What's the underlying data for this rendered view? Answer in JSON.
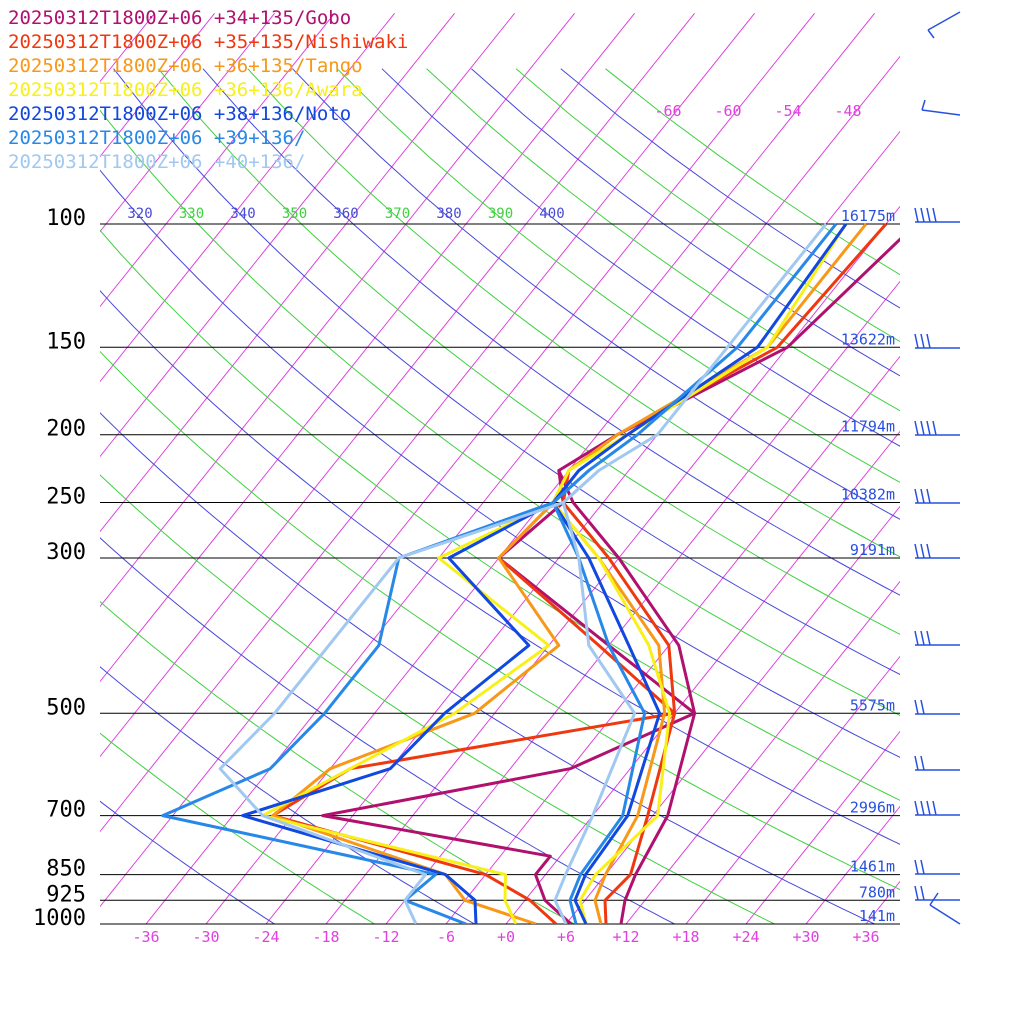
{
  "chart_data": {
    "type": "line",
    "title": "",
    "xlabel": "",
    "ylabel": "",
    "legend_placement": "top-left",
    "grid": true,
    "ylim": [
      1000,
      100
    ],
    "xlim": [
      -40,
      40
    ],
    "pressure_levels": [
      {
        "p": 100,
        "label": "100",
        "height": "16175m"
      },
      {
        "p": 150,
        "label": "150",
        "height": "13622m"
      },
      {
        "p": 200,
        "label": "200",
        "height": "11794m"
      },
      {
        "p": 250,
        "label": "250",
        "height": "10382m"
      },
      {
        "p": 300,
        "label": "300",
        "height": "9191m"
      },
      {
        "p": 500,
        "label": "500",
        "height": "5575m"
      },
      {
        "p": 700,
        "label": "700",
        "height": "2996m"
      },
      {
        "p": 850,
        "label": "850",
        "height": "1461m"
      },
      {
        "p": 925,
        "label": "925",
        "height": "780m"
      },
      {
        "p": 1000,
        "label": "1000",
        "height": "141m"
      }
    ],
    "temp_ticks": [
      "-36",
      "-30",
      "-24",
      "-18",
      "-12",
      "-6",
      "+0",
      "+6",
      "+12",
      "+18",
      "+24",
      "+30",
      "+36"
    ],
    "temp_tick_values": [
      -36,
      -30,
      -24,
      -18,
      -12,
      -6,
      0,
      6,
      12,
      18,
      24,
      30,
      36
    ],
    "upper_isotherm_labels": [
      "-66",
      "-60",
      "-54",
      "-48"
    ],
    "theta_labels": [
      {
        "text": "320",
        "color": "#4848d8"
      },
      {
        "text": "330",
        "color": "#40d040"
      },
      {
        "text": "340",
        "color": "#4848d8"
      },
      {
        "text": "350",
        "color": "#40d040"
      },
      {
        "text": "360",
        "color": "#4848d8"
      },
      {
        "text": "370",
        "color": "#40d040"
      },
      {
        "text": "380",
        "color": "#4848d8"
      },
      {
        "text": "390",
        "color": "#40d040"
      },
      {
        "text": "400",
        "color": "#4848d8"
      }
    ],
    "series": [
      {
        "name": "20250312T1800Z+06 +34+135/Gobo",
        "color": "#b0106e",
        "temperature": [
          [
            1000,
            11.5
          ],
          [
            925,
            10
          ],
          [
            850,
            9
          ],
          [
            700,
            7.5
          ],
          [
            500,
            2
          ],
          [
            400,
            -5
          ],
          [
            300,
            -18
          ],
          [
            250,
            -27
          ],
          [
            225,
            -31
          ],
          [
            200,
            -28
          ],
          [
            150,
            -18
          ],
          [
            100,
            -15
          ]
        ],
        "dewpoint": [
          [
            1000,
            6.5
          ],
          [
            925,
            2
          ],
          [
            850,
            -1
          ],
          [
            800,
            -1
          ],
          [
            700,
            -27
          ],
          [
            600,
            -6
          ],
          [
            500,
            2
          ],
          [
            400,
            -12
          ],
          [
            300,
            -30
          ],
          [
            250,
            -28
          ],
          [
            225,
            -31
          ]
        ]
      },
      {
        "name": "20250312T1800Z+06 +35+135/Nishiwaki",
        "color": "#f03810",
        "temperature": [
          [
            1000,
            10
          ],
          [
            925,
            8
          ],
          [
            850,
            8.5
          ],
          [
            700,
            5.5
          ],
          [
            500,
            0
          ],
          [
            400,
            -6
          ],
          [
            300,
            -19
          ],
          [
            250,
            -28
          ],
          [
            225,
            -30
          ],
          [
            200,
            -28
          ],
          [
            150,
            -19
          ],
          [
            100,
            -18
          ]
        ],
        "dewpoint": [
          [
            1000,
            5
          ],
          [
            925,
            0.5
          ],
          [
            850,
            -6
          ],
          [
            700,
            -32
          ],
          [
            600,
            -28
          ],
          [
            500,
            0
          ],
          [
            400,
            -13
          ],
          [
            300,
            -30
          ],
          [
            250,
            -29
          ],
          [
            225,
            -30
          ]
        ]
      },
      {
        "name": "20250312T1800Z+06 +36+135/Tango",
        "color": "#f89818",
        "temperature": [
          [
            1000,
            9.5
          ],
          [
            925,
            7
          ],
          [
            850,
            6
          ],
          [
            700,
            4.5
          ],
          [
            500,
            -1
          ],
          [
            400,
            -7
          ],
          [
            300,
            -20
          ],
          [
            250,
            -29
          ],
          [
            225,
            -30
          ],
          [
            200,
            -28
          ],
          [
            150,
            -20
          ],
          [
            100,
            -20
          ]
        ],
        "dewpoint": [
          [
            1000,
            3
          ],
          [
            925,
            -6
          ],
          [
            850,
            -10
          ],
          [
            700,
            -32
          ],
          [
            600,
            -30
          ],
          [
            500,
            -20
          ],
          [
            400,
            -17
          ],
          [
            300,
            -30
          ],
          [
            250,
            -29
          ],
          [
            225,
            -30
          ]
        ]
      },
      {
        "name": "20250312T1800Z+06 +36+136/Awara",
        "color": "#f8f018",
        "temperature": [
          [
            1000,
            8
          ],
          [
            925,
            5.5
          ],
          [
            850,
            5
          ],
          [
            700,
            6.5
          ],
          [
            500,
            -0.5
          ],
          [
            400,
            -8
          ],
          [
            300,
            -20
          ],
          [
            250,
            -29
          ],
          [
            225,
            -30
          ],
          [
            200,
            -27
          ],
          [
            150,
            -20
          ],
          [
            100,
            -22
          ]
        ],
        "dewpoint": [
          [
            1000,
            1
          ],
          [
            925,
            -2
          ],
          [
            850,
            -4
          ],
          [
            700,
            -33
          ],
          [
            600,
            -28
          ],
          [
            500,
            -22
          ],
          [
            400,
            -18
          ],
          [
            300,
            -36
          ],
          [
            250,
            -29
          ],
          [
            225,
            -30
          ]
        ]
      },
      {
        "name": "20250312T1800Z+06 +38+136/Noto",
        "color": "#1048e0",
        "temperature": [
          [
            1000,
            8
          ],
          [
            925,
            5
          ],
          [
            850,
            4
          ],
          [
            700,
            3.5
          ],
          [
            500,
            -1.5
          ],
          [
            400,
            -10
          ],
          [
            300,
            -21
          ],
          [
            250,
            -29
          ],
          [
            225,
            -29
          ],
          [
            200,
            -27
          ],
          [
            150,
            -21
          ],
          [
            100,
            -22
          ]
        ],
        "dewpoint": [
          [
            1000,
            -3
          ],
          [
            925,
            -5
          ],
          [
            850,
            -10
          ],
          [
            700,
            -35
          ],
          [
            600,
            -24
          ],
          [
            500,
            -23
          ],
          [
            400,
            -20
          ],
          [
            300,
            -35
          ],
          [
            250,
            -29
          ],
          [
            225,
            -29
          ]
        ]
      },
      {
        "name": "20250312T1800Z+06 +39+136/",
        "color": "#2888e8",
        "temperature": [
          [
            1000,
            7
          ],
          [
            925,
            4.5
          ],
          [
            850,
            3.5
          ],
          [
            700,
            3
          ],
          [
            500,
            -3
          ],
          [
            400,
            -12
          ],
          [
            300,
            -22
          ],
          [
            250,
            -29
          ],
          [
            225,
            -28
          ],
          [
            200,
            -26
          ],
          [
            150,
            -23
          ],
          [
            100,
            -23
          ]
        ],
        "dewpoint": [
          [
            1000,
            -4
          ],
          [
            925,
            -12
          ],
          [
            850,
            -11
          ],
          [
            700,
            -43
          ],
          [
            600,
            -36
          ],
          [
            500,
            -35
          ],
          [
            400,
            -35
          ],
          [
            300,
            -40
          ],
          [
            250,
            -29
          ],
          [
            225,
            -28
          ]
        ]
      },
      {
        "name": "20250312T1800Z+06 +40+136/",
        "color": "#a0c8f0",
        "temperature": [
          [
            1000,
            6
          ],
          [
            925,
            3
          ],
          [
            850,
            2
          ],
          [
            700,
            0
          ],
          [
            500,
            -4
          ],
          [
            400,
            -14
          ],
          [
            300,
            -22
          ],
          [
            250,
            -28
          ],
          [
            225,
            -27
          ],
          [
            200,
            -24
          ],
          [
            150,
            -24
          ],
          [
            100,
            -24
          ]
        ],
        "dewpoint": [
          [
            1000,
            -9
          ],
          [
            925,
            -12
          ],
          [
            850,
            -12
          ],
          [
            700,
            -33
          ],
          [
            600,
            -41
          ],
          [
            500,
            -40
          ],
          [
            400,
            -40
          ],
          [
            300,
            -40
          ],
          [
            250,
            -28
          ],
          [
            225,
            -27
          ]
        ]
      }
    ]
  }
}
